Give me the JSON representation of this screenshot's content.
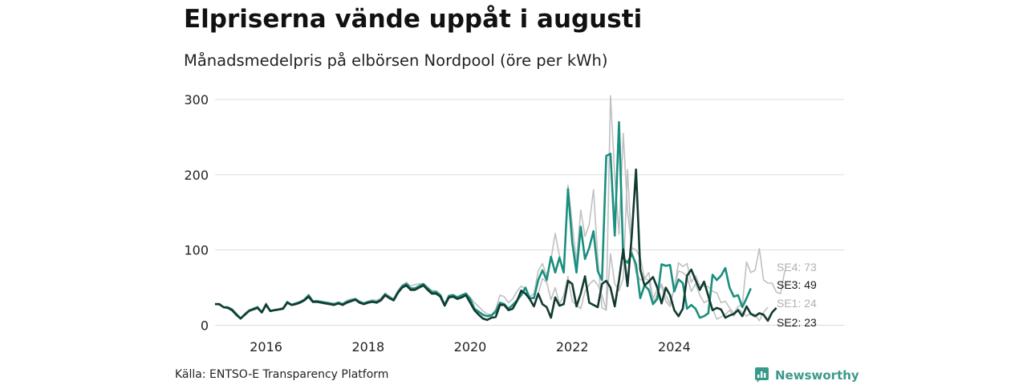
{
  "title": "Elpriserna vände uppåt i augusti",
  "subtitle": "Månadsmedelpris på elbörsen Nordpool (öre per kWh)",
  "source": "Källa: ENTSO-E Transparency Platform",
  "brand": {
    "name": "Newsworthy",
    "icon": "newsworthy-logo-icon",
    "color": "#3a9a8a"
  },
  "chart_data": {
    "type": "line",
    "x_start": "2015-01",
    "x_end": "2025-08",
    "frequency": "monthly",
    "x_ticks": [
      "2016",
      "2018",
      "2020",
      "2022",
      "2024"
    ],
    "y_ticks": [
      0,
      100,
      200,
      300
    ],
    "ylim": [
      0,
      300
    ],
    "grid": true,
    "legend": "direct-labels-right",
    "series": [
      {
        "name": "SE4",
        "label": "SE4: 73",
        "color": "#c0c0c4",
        "values": [
          28,
          27,
          24,
          23,
          19,
          13,
          9,
          16,
          21,
          22,
          25,
          17,
          30,
          18,
          20,
          21,
          24,
          31,
          28,
          30,
          31,
          35,
          39,
          32,
          33,
          32,
          31,
          30,
          29,
          31,
          29,
          33,
          35,
          35,
          32,
          30,
          32,
          34,
          33,
          36,
          43,
          39,
          35,
          46,
          53,
          57,
          52,
          54,
          55,
          55,
          51,
          46,
          46,
          41,
          28,
          40,
          41,
          38,
          40,
          43,
          37,
          30,
          25,
          19,
          15,
          14,
          21,
          40,
          38,
          30,
          35,
          45,
          52,
          48,
          38,
          42,
          72,
          82,
          66,
          87,
          122,
          92,
          70,
          186,
          134,
          84,
          153,
          118,
          134,
          180,
          90,
          23,
          20,
          305,
          198,
          121,
          255,
          152,
          103,
          100,
          90,
          62,
          70,
          35,
          48,
          52,
          32,
          25,
          50,
          83,
          78,
          82,
          57,
          66,
          52,
          52,
          51,
          45,
          43,
          30,
          32,
          23,
          16,
          25,
          27,
          84,
          70,
          73,
          102,
          60,
          56,
          56,
          44,
          42,
          73
        ]
      },
      {
        "name": "SE3",
        "label": "SE3: 49",
        "color": "#1a8f7e",
        "values": [
          28,
          28,
          24,
          24,
          21,
          15,
          9,
          14,
          19,
          22,
          24,
          17,
          28,
          19,
          20,
          21,
          22,
          31,
          27,
          29,
          31,
          34,
          40,
          32,
          32,
          31,
          30,
          29,
          28,
          30,
          28,
          31,
          33,
          35,
          31,
          29,
          31,
          32,
          31,
          34,
          41,
          37,
          34,
          44,
          52,
          55,
          49,
          49,
          52,
          55,
          49,
          44,
          44,
          40,
          27,
          39,
          40,
          37,
          40,
          42,
          35,
          22,
          18,
          14,
          12,
          13,
          18,
          30,
          28,
          22,
          27,
          33,
          40,
          50,
          36,
          36,
          60,
          73,
          60,
          91,
          70,
          90,
          70,
          181,
          110,
          70,
          131,
          88,
          103,
          125,
          72,
          60,
          225,
          228,
          119,
          270,
          89,
          83,
          95,
          81,
          36,
          53,
          47,
          28,
          35,
          81,
          79,
          80,
          45,
          61,
          56,
          22,
          27,
          22,
          10,
          12,
          16,
          67,
          60,
          66,
          76,
          50,
          38,
          40,
          24,
          36,
          49
        ]
      },
      {
        "name": "SE1",
        "label": "SE1: 24",
        "color": "#c0c0c4",
        "values": [
          28,
          28,
          24,
          23,
          20,
          14,
          9,
          14,
          19,
          21,
          23,
          17,
          27,
          19,
          20,
          21,
          22,
          30,
          27,
          28,
          30,
          33,
          38,
          31,
          31,
          30,
          29,
          28,
          27,
          29,
          27,
          30,
          32,
          34,
          30,
          28,
          30,
          31,
          30,
          33,
          40,
          36,
          33,
          43,
          50,
          53,
          47,
          47,
          50,
          53,
          47,
          42,
          42,
          38,
          26,
          37,
          38,
          35,
          37,
          40,
          30,
          20,
          14,
          9,
          7,
          10,
          11,
          27,
          27,
          20,
          22,
          32,
          46,
          42,
          35,
          25,
          42,
          62,
          57,
          34,
          50,
          28,
          40,
          65,
          32,
          27,
          22,
          45,
          54,
          60,
          54,
          40,
          20,
          95,
          55,
          46,
          62,
          207,
          100,
          70,
          60,
          62,
          60,
          30,
          40,
          55,
          40,
          28,
          50,
          72,
          70,
          65,
          45,
          55,
          40,
          30,
          33,
          22,
          8,
          11,
          14,
          20,
          12,
          22,
          17,
          12,
          16,
          14,
          6,
          17,
          24
        ]
      },
      {
        "name": "SE2",
        "label": "SE2: 23",
        "color": "#123b30",
        "values": [
          28,
          28,
          24,
          23,
          20,
          14,
          9,
          14,
          19,
          21,
          23,
          17,
          27,
          19,
          20,
          21,
          22,
          30,
          27,
          28,
          30,
          33,
          38,
          31,
          31,
          30,
          29,
          28,
          27,
          29,
          27,
          30,
          32,
          34,
          30,
          28,
          30,
          31,
          30,
          33,
          40,
          36,
          33,
          43,
          50,
          53,
          47,
          47,
          50,
          53,
          47,
          42,
          42,
          38,
          26,
          37,
          38,
          35,
          37,
          40,
          30,
          20,
          14,
          9,
          7,
          10,
          11,
          27,
          27,
          20,
          22,
          32,
          46,
          42,
          35,
          25,
          42,
          28,
          24,
          10,
          37,
          26,
          28,
          59,
          55,
          25,
          42,
          65,
          30,
          27,
          24,
          55,
          59,
          50,
          25,
          60,
          101,
          52,
          119,
          207,
          74,
          53,
          58,
          64,
          50,
          29,
          50,
          40,
          20,
          12,
          22,
          66,
          74,
          60,
          47,
          58,
          39,
          20,
          23,
          21,
          10,
          13,
          15,
          20,
          12,
          25,
          15,
          12,
          16,
          14,
          6,
          17,
          23
        ]
      }
    ]
  }
}
